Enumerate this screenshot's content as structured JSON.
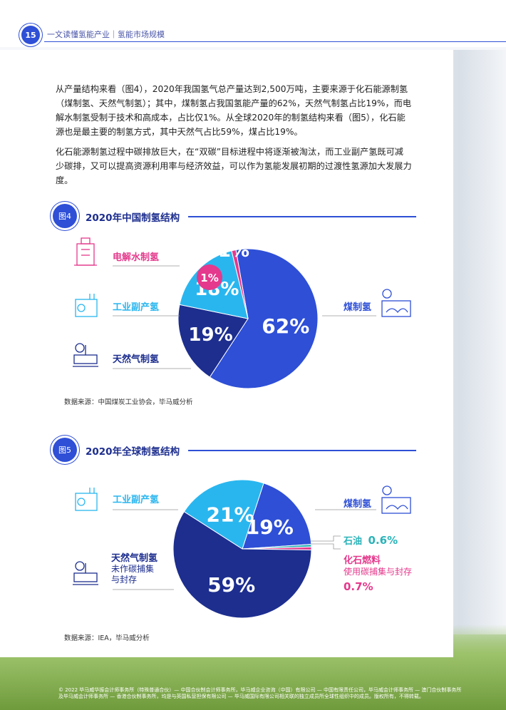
{
  "header": {
    "page_number": "15",
    "title": "一文读懂氢能产业｜氢能市场规模"
  },
  "paragraphs": [
    "从产量结构来看（图4），2020年我国氢气总产量达到2,500万吨，主要来源于化石能源制氢（煤制氢、天然气制氢）；其中，煤制氢占我国氢能产量的62%，天然气制氢占比19%，而电解水制氢受制于技术和高成本，占比仅1%。从全球2020年的制氢结构来看（图5），化石能源也是最主要的制氢方式，其中天然气占比59%，煤占比19%。",
    "化石能源制氢过程中碳排放巨大，在“双碳”目标进程中将逐渐被淘汰，而工业副产氢既可减少碳排，又可以提高资源利用率与经济效益，可以作为氢能发展初期的过渡性氢源加大发展力度。"
  ],
  "colors": {
    "blue": "#2e4fd6",
    "navy": "#1d2e8f",
    "cyan": "#29b6ef",
    "pink": "#e4398c",
    "teal": "#2bb3b8"
  },
  "figure4": {
    "badge": "图4",
    "title": "2020年中国制氢结构",
    "labels": {
      "electrolysis": "电解水制氢",
      "industrial": "工业副产氢",
      "natural_gas": "天然气制氢",
      "coal": "煤制氢"
    },
    "source": "数据来源：中国煤炭工业协会，毕马威分析"
  },
  "figure5": {
    "badge": "图5",
    "title": "2020年全球制氢结构",
    "labels": {
      "industrial": "工业副产氢",
      "natural_gas": "天然气制氢",
      "natural_gas_sub1": "未作碳捕集",
      "natural_gas_sub2": "与封存",
      "coal": "煤制氢",
      "oil": "石油",
      "oil_value": "0.6%",
      "fossil_ccs": "化石燃料",
      "fossil_ccs_sub": "使用碳捕集与封存",
      "fossil_ccs_value": "0.7%"
    },
    "source": "数据来源：IEA，毕马威分析"
  },
  "chart_data": [
    {
      "type": "pie",
      "title": "2020年中国制氢结构",
      "categories": [
        "煤制氢",
        "天然气制氢",
        "工业副产氢",
        "电解水制氢"
      ],
      "values": [
        62,
        19,
        18,
        1
      ],
      "value_labels": [
        "62%",
        "19%",
        "18%",
        "1%"
      ],
      "colors": [
        "#2e4fd6",
        "#1d2e8f",
        "#29b6ef",
        "#e4398c"
      ]
    },
    {
      "type": "pie",
      "title": "2020年全球制氢结构",
      "categories": [
        "煤制氢",
        "石油",
        "化石燃料 使用碳捕集与封存",
        "天然气制氢 未作碳捕集与封存",
        "工业副产氢"
      ],
      "values": [
        19,
        0.6,
        0.7,
        59,
        21
      ],
      "value_labels": [
        "19%",
        "",
        "",
        "59%",
        "21%"
      ],
      "colors": [
        "#2e4fd6",
        "#2bb3b8",
        "#e4398c",
        "#1d2e8f",
        "#29b6ef"
      ]
    }
  ],
  "footer": "© 2022 毕马威华振会计师事务所（特殊普通合伙）— 中国合伙制会计师事务所，毕马威企业咨询（中国）有限公司 — 中国有限责任公司，毕马威会计师事务所 — 澳门合伙制事务所及毕马威会计师事务所 — 香港合伙制事务所，均是与英国私营担保有限公司 — 毕马威国际有限公司相关联的独立成员所全球性组织中的成员。版权所有，不得转载。"
}
